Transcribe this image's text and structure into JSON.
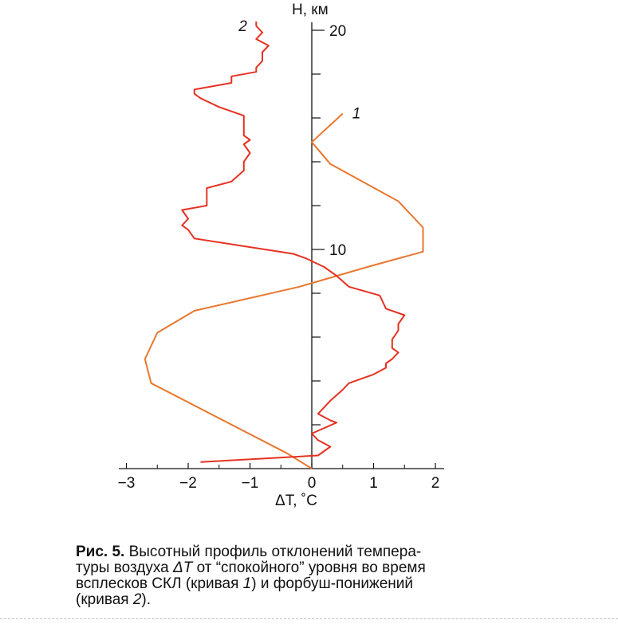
{
  "chart_data": {
    "type": "line",
    "xlabel": "ΔT, ˚C",
    "ylabel": "H, км",
    "xlim": [
      -3,
      2
    ],
    "ylim": [
      0,
      20
    ],
    "x_ticks": [
      -3,
      -2,
      -1,
      0,
      1,
      2
    ],
    "x_tick_labels": [
      "−3",
      "−2",
      "−1",
      "0",
      "1",
      "2"
    ],
    "y_ticks": [
      10,
      20
    ],
    "y_tick_labels": [
      "10",
      "20"
    ],
    "grid": false,
    "series": [
      {
        "name": "1",
        "color": "#E8772E",
        "points": [
          [
            0.0,
            0.0
          ],
          [
            -0.4,
            0.7
          ],
          [
            -2.6,
            3.9
          ],
          [
            -2.7,
            5.0
          ],
          [
            -2.5,
            6.2
          ],
          [
            -1.9,
            7.2
          ],
          [
            -0.2,
            8.3
          ],
          [
            0.9,
            9.2
          ],
          [
            1.8,
            9.9
          ],
          [
            1.8,
            11.0
          ],
          [
            1.4,
            12.2
          ],
          [
            0.3,
            13.9
          ],
          [
            0.0,
            14.9
          ],
          [
            0.5,
            16.2
          ]
        ]
      },
      {
        "name": "2",
        "color": "#E53222",
        "points": [
          [
            -1.8,
            0.3
          ],
          [
            0.1,
            0.6
          ],
          [
            0.3,
            1.0
          ],
          [
            0.1,
            1.3
          ],
          [
            0.0,
            1.6
          ],
          [
            0.4,
            2.1
          ],
          [
            0.3,
            2.2
          ],
          [
            0.1,
            2.5
          ],
          [
            0.3,
            3.1
          ],
          [
            0.5,
            3.6
          ],
          [
            0.6,
            3.9
          ],
          [
            1.0,
            4.3
          ],
          [
            1.2,
            4.6
          ],
          [
            1.2,
            4.8
          ],
          [
            1.3,
            5.0
          ],
          [
            1.4,
            5.3
          ],
          [
            1.3,
            5.5
          ],
          [
            1.3,
            5.9
          ],
          [
            1.4,
            6.3
          ],
          [
            1.4,
            6.6
          ],
          [
            1.5,
            7.0
          ],
          [
            1.2,
            7.3
          ],
          [
            1.1,
            7.9
          ],
          [
            0.6,
            8.3
          ],
          [
            0.4,
            8.8
          ],
          [
            0.2,
            9.2
          ],
          [
            -0.1,
            9.6
          ],
          [
            -0.3,
            9.8
          ],
          [
            -1.9,
            10.5
          ],
          [
            -2.0,
            10.9
          ],
          [
            -2.1,
            11.1
          ],
          [
            -2.0,
            11.4
          ],
          [
            -2.1,
            11.8
          ],
          [
            -1.7,
            12.0
          ],
          [
            -1.7,
            12.8
          ],
          [
            -1.3,
            13.1
          ],
          [
            -1.1,
            13.6
          ],
          [
            -1.1,
            14.0
          ],
          [
            -1.0,
            14.4
          ],
          [
            -1.1,
            14.8
          ],
          [
            -1.0,
            15.0
          ],
          [
            -1.1,
            15.2
          ],
          [
            -1.1,
            16.1
          ],
          [
            -1.5,
            16.5
          ],
          [
            -1.8,
            16.9
          ],
          [
            -1.9,
            17.1
          ],
          [
            -1.9,
            17.3
          ],
          [
            -1.3,
            17.6
          ],
          [
            -1.3,
            17.9
          ],
          [
            -0.9,
            18.1
          ],
          [
            -0.9,
            18.3
          ],
          [
            -0.8,
            18.6
          ],
          [
            -0.8,
            19.0
          ],
          [
            -0.7,
            19.3
          ],
          [
            -0.9,
            19.6
          ],
          [
            -0.8,
            19.9
          ],
          [
            -0.9,
            20.2
          ],
          [
            -0.9,
            20.4
          ]
        ]
      }
    ],
    "curve_labels": [
      {
        "text": "1",
        "series": "1"
      },
      {
        "text": "2",
        "series": "2"
      }
    ]
  },
  "caption": {
    "label": "Рис. 5.",
    "part1": " Высотный профиль отклонений темпера-",
    "part2": "туры воздуха ",
    "symbol": "ΔT",
    "part3": " от “спокойного” уровня во время",
    "part4": "всплесков СКЛ (кривая ",
    "curve1": "1",
    "part5": ") и форбуш-понижений",
    "part6": "(кривая ",
    "curve2": "2",
    "part7": ")."
  }
}
